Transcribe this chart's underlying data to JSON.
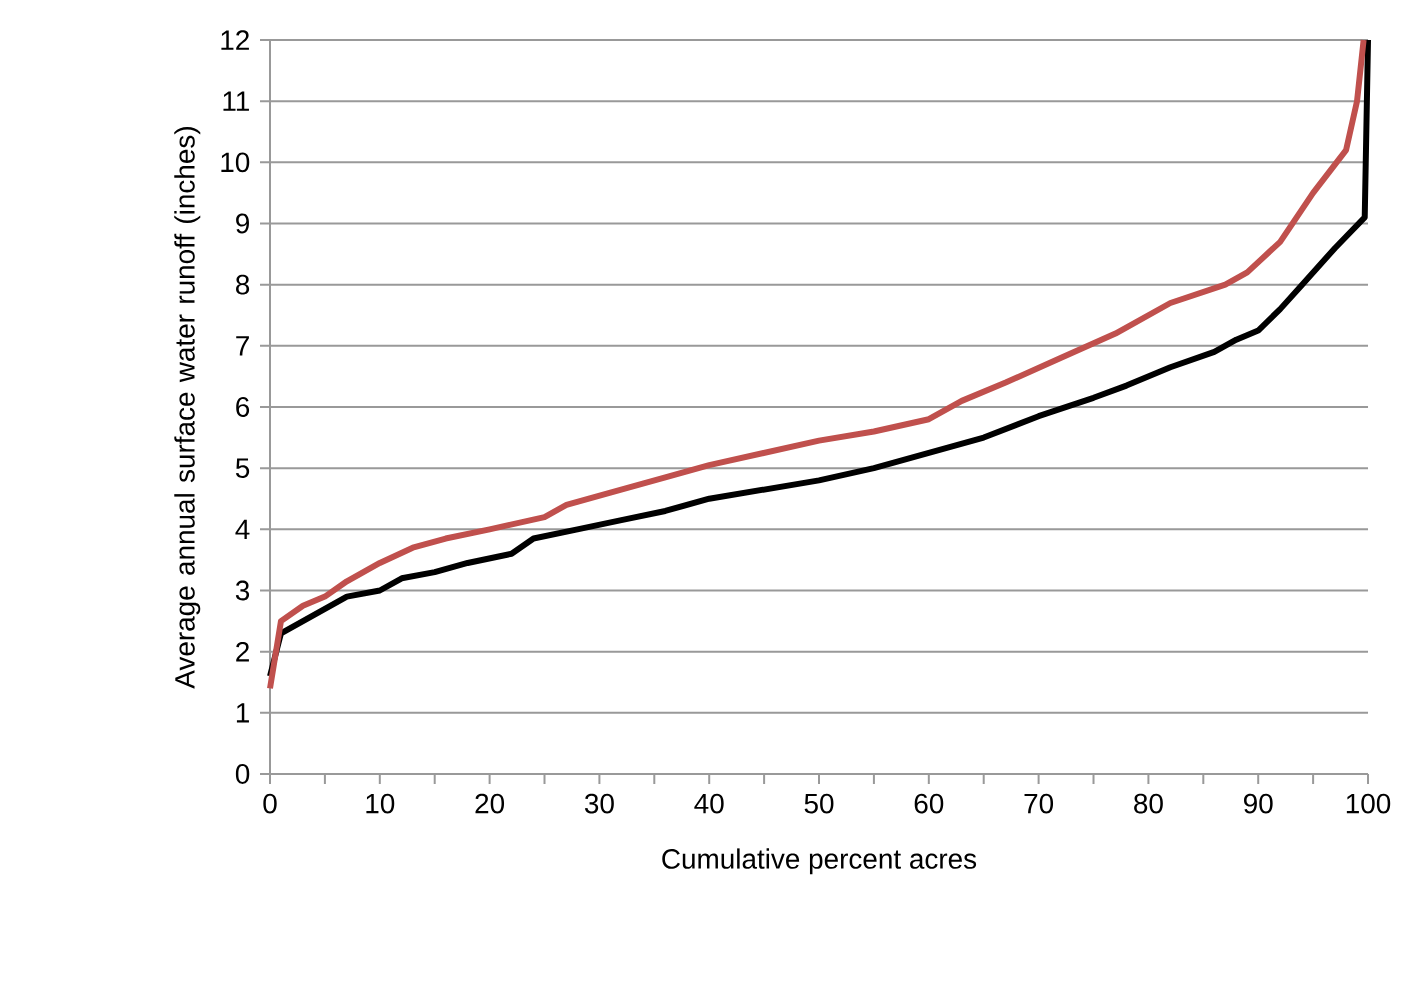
{
  "chart_data": {
    "type": "line",
    "xlabel": "Cumulative percent acres",
    "ylabel": "Average annual surface water runoff (inches)",
    "xlim": [
      0,
      100
    ],
    "ylim": [
      0,
      12
    ],
    "xticks": [
      0,
      {
        "value": 5,
        "label": null
      },
      10,
      {
        "value": 15,
        "label": null
      },
      20,
      {
        "value": 25,
        "label": null
      },
      30,
      {
        "value": 35,
        "label": null
      },
      40,
      {
        "value": 45,
        "label": null
      },
      50,
      {
        "value": 55,
        "label": null
      },
      60,
      {
        "value": 65,
        "label": null
      },
      70,
      {
        "value": 75,
        "label": null
      },
      80,
      {
        "value": 85,
        "label": null
      },
      90,
      {
        "value": 95,
        "label": null
      },
      100
    ],
    "yticks": [
      0,
      1,
      2,
      3,
      4,
      5,
      6,
      7,
      8,
      9,
      10,
      11,
      12
    ],
    "grid": "y",
    "marker": "none",
    "line_style": "solid",
    "series": [
      {
        "color": "#000000",
        "x": [
          0,
          1,
          3,
          5,
          7,
          10,
          12,
          15,
          18,
          22,
          24,
          28,
          32,
          36,
          40,
          45,
          50,
          55,
          60,
          65,
          70,
          75,
          78,
          82,
          86,
          88,
          90,
          92,
          94,
          97,
          99.7,
          100
        ],
        "values": [
          1.6,
          2.3,
          2.5,
          2.7,
          2.9,
          3.0,
          3.2,
          3.3,
          3.45,
          3.6,
          3.85,
          4.0,
          4.15,
          4.3,
          4.5,
          4.65,
          4.8,
          5.0,
          5.25,
          5.5,
          5.85,
          6.15,
          6.35,
          6.65,
          6.9,
          7.1,
          7.25,
          7.6,
          8.0,
          8.6,
          9.1,
          12
        ]
      },
      {
        "color": "#c0504d",
        "x": [
          0,
          1,
          3,
          5,
          7,
          10,
          13,
          16,
          20,
          25,
          27,
          31,
          36,
          40,
          45,
          50,
          55,
          60,
          63,
          67,
          72,
          77,
          82,
          87,
          89,
          92,
          95,
          98,
          99,
          99.6
        ],
        "values": [
          1.4,
          2.5,
          2.75,
          2.9,
          3.15,
          3.45,
          3.7,
          3.85,
          4.0,
          4.2,
          4.4,
          4.6,
          4.85,
          5.05,
          5.25,
          5.45,
          5.6,
          5.8,
          6.1,
          6.4,
          6.8,
          7.2,
          7.7,
          8.0,
          8.2,
          8.7,
          9.5,
          10.2,
          11.0,
          12
        ]
      }
    ]
  }
}
